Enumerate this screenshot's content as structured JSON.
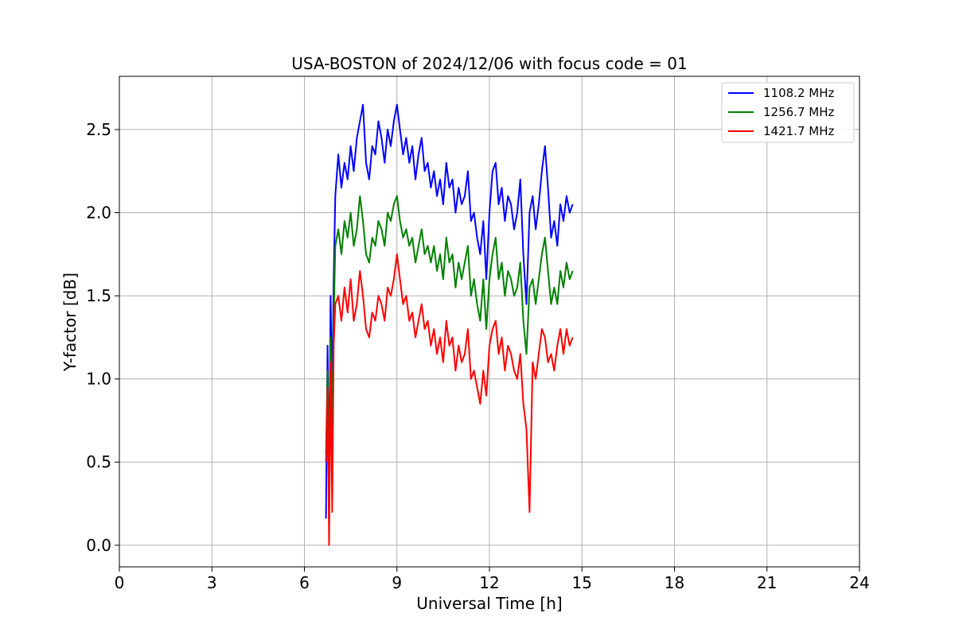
{
  "chart_data": {
    "type": "line",
    "title": "USA-BOSTON of 2024/12/06 with focus code = 01",
    "xlabel": "Universal Time [h]",
    "ylabel": "Y-factor [dB]",
    "xlim": [
      0,
      24
    ],
    "ylim": [
      -0.13,
      2.82
    ],
    "xticks": [
      0,
      3,
      6,
      9,
      12,
      15,
      18,
      21,
      24
    ],
    "yticks": [
      0.0,
      0.5,
      1.0,
      1.5,
      2.0,
      2.5
    ],
    "ytick_labels": [
      "0.0",
      "0.5",
      "1.0",
      "1.5",
      "2.0",
      "2.5"
    ],
    "grid": true,
    "legend_position": "top-right",
    "series": [
      {
        "name": "1108.2 MHz",
        "color": "#0000ff",
        "x": [
          6.7,
          6.75,
          6.8,
          6.85,
          6.9,
          6.95,
          7.0,
          7.1,
          7.2,
          7.3,
          7.4,
          7.5,
          7.6,
          7.7,
          7.8,
          7.9,
          8.0,
          8.1,
          8.2,
          8.3,
          8.4,
          8.5,
          8.6,
          8.7,
          8.8,
          8.9,
          9.0,
          9.1,
          9.2,
          9.3,
          9.4,
          9.5,
          9.6,
          9.7,
          9.8,
          9.9,
          10.0,
          10.1,
          10.2,
          10.3,
          10.4,
          10.5,
          10.6,
          10.7,
          10.8,
          10.9,
          11.0,
          11.1,
          11.2,
          11.3,
          11.4,
          11.5,
          11.6,
          11.7,
          11.8,
          11.9,
          12.0,
          12.1,
          12.2,
          12.3,
          12.4,
          12.5,
          12.6,
          12.7,
          12.8,
          12.9,
          13.0,
          13.1,
          13.2,
          13.3,
          13.4,
          13.5,
          13.6,
          13.7,
          13.8,
          13.9,
          14.0,
          14.1,
          14.2,
          14.3,
          14.4,
          14.5,
          14.6,
          14.7
        ],
        "y": [
          0.16,
          1.2,
          0.35,
          1.5,
          0.9,
          1.6,
          2.1,
          2.35,
          2.15,
          2.3,
          2.2,
          2.4,
          2.25,
          2.45,
          2.55,
          2.65,
          2.3,
          2.2,
          2.4,
          2.35,
          2.55,
          2.45,
          2.3,
          2.5,
          2.4,
          2.55,
          2.65,
          2.5,
          2.35,
          2.45,
          2.3,
          2.4,
          2.2,
          2.35,
          2.45,
          2.25,
          2.3,
          2.15,
          2.25,
          2.1,
          2.2,
          2.05,
          2.3,
          2.15,
          2.2,
          2.0,
          2.15,
          2.05,
          2.1,
          2.25,
          1.95,
          2.0,
          1.85,
          1.75,
          1.95,
          1.6,
          2.0,
          2.25,
          2.3,
          2.05,
          2.15,
          1.95,
          2.1,
          2.05,
          1.9,
          2.0,
          2.2,
          1.75,
          1.45,
          2.0,
          2.1,
          1.9,
          2.05,
          2.25,
          2.4,
          2.15,
          1.85,
          1.95,
          1.8,
          2.05,
          1.95,
          2.1,
          2.0,
          2.05
        ]
      },
      {
        "name": "1256.7 MHz",
        "color": "#008000",
        "x": [
          6.7,
          6.75,
          6.8,
          6.85,
          6.9,
          6.95,
          7.0,
          7.1,
          7.2,
          7.3,
          7.4,
          7.5,
          7.6,
          7.7,
          7.8,
          7.9,
          8.0,
          8.1,
          8.2,
          8.3,
          8.4,
          8.5,
          8.6,
          8.7,
          8.8,
          8.9,
          9.0,
          9.1,
          9.2,
          9.3,
          9.4,
          9.5,
          9.6,
          9.7,
          9.8,
          9.9,
          10.0,
          10.1,
          10.2,
          10.3,
          10.4,
          10.5,
          10.6,
          10.7,
          10.8,
          10.9,
          11.0,
          11.1,
          11.2,
          11.3,
          11.4,
          11.5,
          11.6,
          11.7,
          11.8,
          11.9,
          12.0,
          12.1,
          12.2,
          12.3,
          12.4,
          12.5,
          12.6,
          12.7,
          12.8,
          12.9,
          13.0,
          13.1,
          13.2,
          13.3,
          13.4,
          13.5,
          13.6,
          13.7,
          13.8,
          13.9,
          14.0,
          14.1,
          14.2,
          14.3,
          14.4,
          14.5,
          14.6,
          14.7
        ],
        "y": [
          0.55,
          1.05,
          0.45,
          1.25,
          0.7,
          1.35,
          1.8,
          1.9,
          1.75,
          1.95,
          1.85,
          2.0,
          1.8,
          1.9,
          2.1,
          1.95,
          1.75,
          1.7,
          1.85,
          1.8,
          1.95,
          1.9,
          1.8,
          2.0,
          1.95,
          2.05,
          2.1,
          1.95,
          1.85,
          1.9,
          1.8,
          1.85,
          1.7,
          1.8,
          1.9,
          1.75,
          1.8,
          1.7,
          1.8,
          1.65,
          1.75,
          1.6,
          1.85,
          1.7,
          1.75,
          1.55,
          1.7,
          1.6,
          1.7,
          1.8,
          1.5,
          1.6,
          1.45,
          1.35,
          1.6,
          1.3,
          1.6,
          1.75,
          1.85,
          1.6,
          1.7,
          1.5,
          1.65,
          1.6,
          1.5,
          1.55,
          1.7,
          1.35,
          1.15,
          1.55,
          1.6,
          1.45,
          1.6,
          1.75,
          1.85,
          1.65,
          1.45,
          1.55,
          1.45,
          1.65,
          1.55,
          1.7,
          1.6,
          1.65
        ]
      },
      {
        "name": "1421.7 MHz",
        "color": "#ff0000",
        "x": [
          6.7,
          6.75,
          6.8,
          6.85,
          6.9,
          6.95,
          7.0,
          7.1,
          7.2,
          7.3,
          7.4,
          7.5,
          7.6,
          7.7,
          7.8,
          7.9,
          8.0,
          8.1,
          8.2,
          8.3,
          8.4,
          8.5,
          8.6,
          8.7,
          8.8,
          8.9,
          9.0,
          9.1,
          9.2,
          9.3,
          9.4,
          9.5,
          9.6,
          9.7,
          9.8,
          9.9,
          10.0,
          10.1,
          10.2,
          10.3,
          10.4,
          10.5,
          10.6,
          10.7,
          10.8,
          10.9,
          11.0,
          11.1,
          11.2,
          11.3,
          11.4,
          11.5,
          11.6,
          11.7,
          11.8,
          11.9,
          12.0,
          12.1,
          12.2,
          12.3,
          12.4,
          12.5,
          12.6,
          12.7,
          12.8,
          12.9,
          13.0,
          13.1,
          13.2,
          13.3,
          13.4,
          13.5,
          13.6,
          13.7,
          13.8,
          13.9,
          14.0,
          14.1,
          14.2,
          14.3,
          14.4,
          14.5,
          14.6,
          14.7
        ],
        "y": [
          0.5,
          0.95,
          0.0,
          1.1,
          0.2,
          1.2,
          1.45,
          1.5,
          1.35,
          1.55,
          1.4,
          1.6,
          1.35,
          1.45,
          1.65,
          1.5,
          1.3,
          1.25,
          1.4,
          1.35,
          1.5,
          1.45,
          1.35,
          1.55,
          1.5,
          1.6,
          1.75,
          1.6,
          1.45,
          1.5,
          1.35,
          1.4,
          1.25,
          1.35,
          1.45,
          1.3,
          1.35,
          1.2,
          1.3,
          1.15,
          1.25,
          1.1,
          1.35,
          1.2,
          1.25,
          1.05,
          1.2,
          1.1,
          1.15,
          1.3,
          1.0,
          1.05,
          0.95,
          0.85,
          1.05,
          0.9,
          1.2,
          1.3,
          1.35,
          1.15,
          1.25,
          1.05,
          1.2,
          1.15,
          1.05,
          1.0,
          1.15,
          0.85,
          0.7,
          0.2,
          1.1,
          1.0,
          1.15,
          1.3,
          1.25,
          1.1,
          1.15,
          1.05,
          1.2,
          1.3,
          1.15,
          1.3,
          1.2,
          1.25
        ]
      }
    ]
  }
}
